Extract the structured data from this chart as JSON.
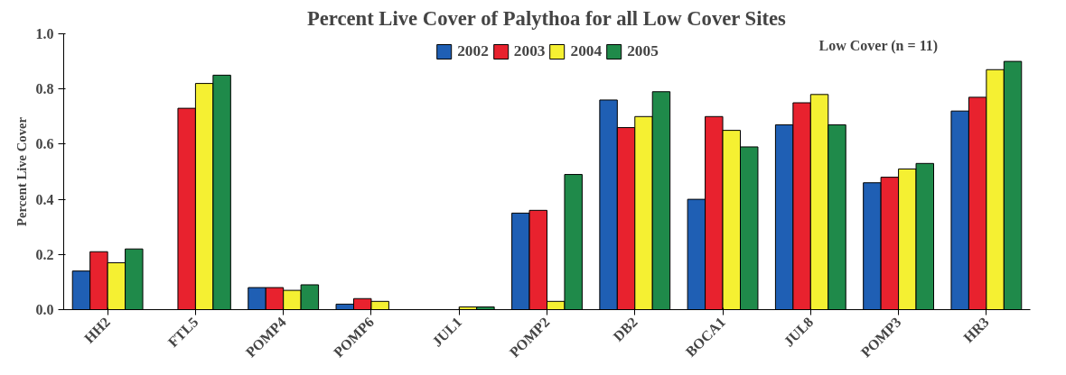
{
  "chart_data": {
    "type": "bar",
    "title": "Percent Live Cover of Palythoa for all Low Cover Sites",
    "ylabel": "Percent Live Cover",
    "categories": [
      "HH2",
      "FTL5",
      "POMP4",
      "POMP6",
      "JUL1",
      "POMP2",
      "DB2",
      "BOCA1",
      "JUL8",
      "POMP3",
      "HR3"
    ],
    "series": [
      {
        "name": "2002",
        "color": "#1f5fb4",
        "values": [
          0.14,
          null,
          0.08,
          0.02,
          null,
          0.35,
          0.76,
          0.4,
          0.67,
          0.46,
          0.72
        ]
      },
      {
        "name": "2003",
        "color": "#e8222e",
        "values": [
          0.21,
          0.73,
          0.08,
          0.04,
          null,
          0.36,
          0.66,
          0.7,
          0.75,
          0.48,
          0.77
        ]
      },
      {
        "name": "2004",
        "color": "#f5f032",
        "values": [
          0.17,
          0.82,
          0.07,
          0.03,
          0.01,
          0.03,
          0.7,
          0.65,
          0.78,
          0.51,
          0.87
        ]
      },
      {
        "name": "2005",
        "color": "#1f8a4a",
        "values": [
          0.22,
          0.85,
          0.09,
          null,
          0.01,
          0.49,
          0.79,
          0.59,
          0.67,
          0.53,
          0.9
        ]
      }
    ],
    "ylim": [
      0,
      1.0
    ],
    "yticks": [
      {
        "value": 0,
        "label": "0.0"
      },
      0.2,
      0.4,
      0.6,
      0.8,
      {
        "value": 1,
        "label": "1.0"
      }
    ],
    "annotations": [
      "Low Cover (n = 11)"
    ],
    "legend": "top",
    "grid": false
  }
}
